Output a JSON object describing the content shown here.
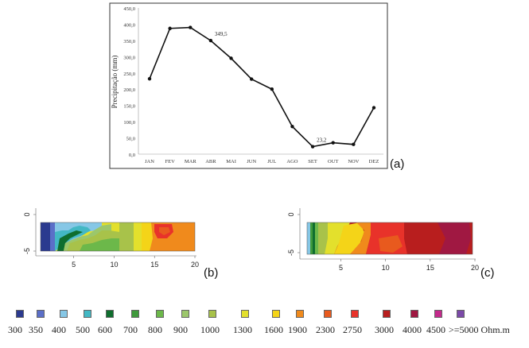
{
  "chart_data": [
    {
      "type": "line",
      "panel_label": "(a)",
      "ylabel": "Precipitação (mm)",
      "ylim": [
        0,
        450
      ],
      "yticks": [
        "0,0",
        "50,0",
        "100,0",
        "150,0",
        "200,0",
        "250,0",
        "300,0",
        "350,0",
        "400,0",
        "450,0"
      ],
      "categories": [
        "JAN",
        "FEV",
        "MAR",
        "ABR",
        "MAI",
        "JUN",
        "JUL",
        "AGO",
        "SET",
        "OUT",
        "NOV",
        "DEZ"
      ],
      "values": [
        232,
        387,
        390,
        349.5,
        295,
        231,
        200,
        85,
        23.2,
        35,
        30,
        143
      ],
      "annotations": [
        {
          "category": "ABR",
          "text": "349,5"
        },
        {
          "category": "SET",
          "text": "23,2"
        }
      ],
      "line_color": "#111111"
    },
    {
      "type": "heatmap",
      "panel_label": "(b)",
      "yticks": [
        "0",
        "-5"
      ],
      "xticks": [
        "5",
        "10",
        "15",
        "20"
      ],
      "xlim": [
        0.5,
        20
      ],
      "description_colors": "resistivity section"
    },
    {
      "type": "heatmap",
      "panel_label": "(c)",
      "yticks": [
        "0",
        "-5"
      ],
      "xticks": [
        "5",
        "10",
        "15",
        "20"
      ],
      "xlim": [
        0.5,
        20
      ]
    }
  ],
  "legend": {
    "items": [
      {
        "label": "300",
        "color": "#2b3a8f"
      },
      {
        "label": "350",
        "color": "#5b6fc8"
      },
      {
        "label": "400",
        "color": "#86c7e6"
      },
      {
        "label": "500",
        "color": "#43b8c4"
      },
      {
        "label": "600",
        "color": "#0f6e2e"
      },
      {
        "label": "700",
        "color": "#3f9a3c"
      },
      {
        "label": "800",
        "color": "#6cb84a"
      },
      {
        "label": "900",
        "color": "#9cc76b"
      },
      {
        "label": "1000",
        "color": "#a8c24a"
      },
      {
        "label": "1300",
        "color": "#e3e02c"
      },
      {
        "label": "1600",
        "color": "#f4d418"
      },
      {
        "label": "1900",
        "color": "#f08a1c"
      },
      {
        "label": "2300",
        "color": "#e85a1e"
      },
      {
        "label": "2750",
        "color": "#e8322a"
      },
      {
        "label": "3000",
        "color": "#b81e1e"
      },
      {
        "label": "4000",
        "color": "#a01842"
      },
      {
        "label": "4500",
        "color": "#c42a8c"
      },
      {
        "label": ">=5000 Ohm.m",
        "color": "#7b4aa8"
      }
    ]
  }
}
